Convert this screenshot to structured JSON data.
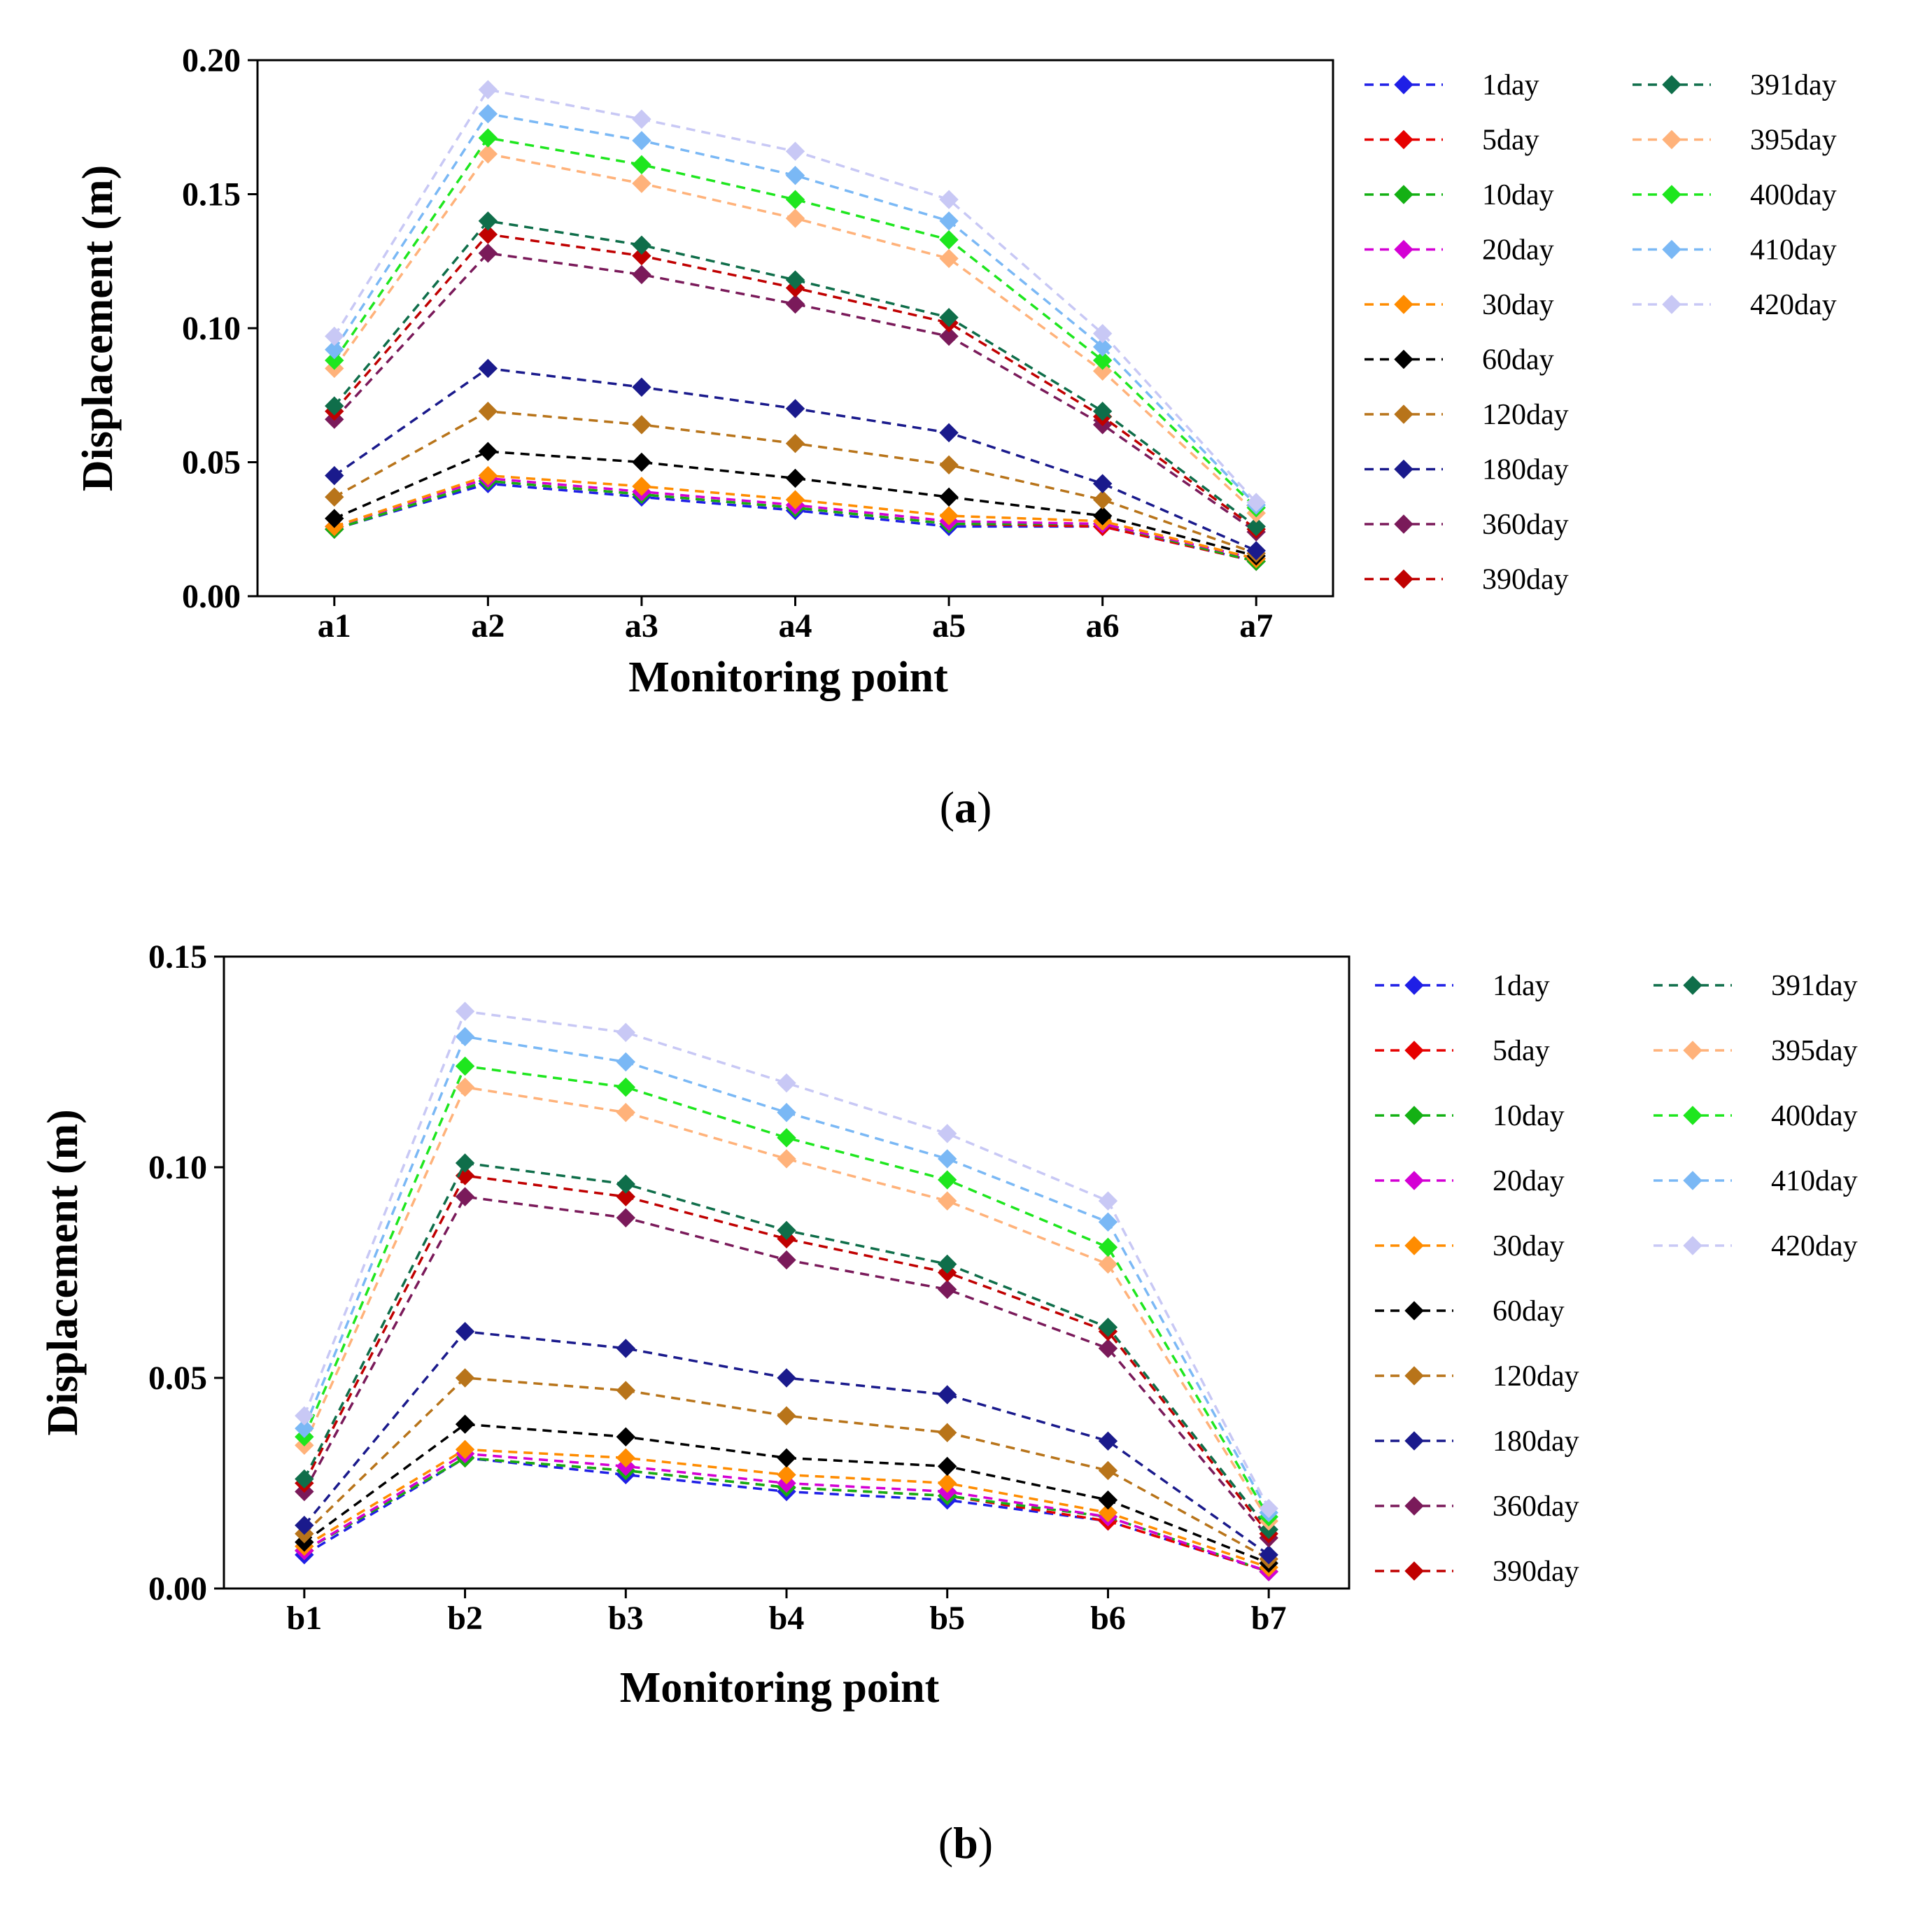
{
  "chart_data": [
    {
      "type": "line",
      "caption_letter": "a",
      "xlabel": "Monitoring point",
      "ylabel": "Displacement (m)",
      "categories": [
        "a1",
        "a2",
        "a3",
        "a4",
        "a5",
        "a6",
        "a7"
      ],
      "ylim": [
        0,
        0.2
      ],
      "yticks": [
        0.0,
        0.05,
        0.1,
        0.15,
        0.2
      ],
      "ytick_labels": [
        "0.00",
        "0.05",
        "0.10",
        "0.15",
        "0.20"
      ],
      "series": [
        {
          "name": "1day",
          "color": "#1f1fe6",
          "values": [
            0.025,
            0.042,
            0.037,
            0.032,
            0.026,
            0.026,
            0.013
          ]
        },
        {
          "name": "5day",
          "color": "#e60000",
          "values": [
            0.025,
            0.043,
            0.038,
            0.033,
            0.027,
            0.026,
            0.013
          ]
        },
        {
          "name": "10day",
          "color": "#14b014",
          "values": [
            0.025,
            0.043,
            0.038,
            0.033,
            0.027,
            0.027,
            0.013
          ]
        },
        {
          "name": "20day",
          "color": "#d400d4",
          "values": [
            0.026,
            0.044,
            0.039,
            0.034,
            0.028,
            0.027,
            0.014
          ]
        },
        {
          "name": "30day",
          "color": "#ff8c00",
          "values": [
            0.026,
            0.045,
            0.041,
            0.036,
            0.03,
            0.028,
            0.014
          ]
        },
        {
          "name": "60day",
          "color": "#000000",
          "values": [
            0.029,
            0.054,
            0.05,
            0.044,
            0.037,
            0.03,
            0.015
          ]
        },
        {
          "name": "120day",
          "color": "#b8741a",
          "values": [
            0.037,
            0.069,
            0.064,
            0.057,
            0.049,
            0.036,
            0.016
          ]
        },
        {
          "name": "180day",
          "color": "#1a1a8c",
          "values": [
            0.045,
            0.085,
            0.078,
            0.07,
            0.061,
            0.042,
            0.017
          ]
        },
        {
          "name": "360day",
          "color": "#7a1a5a",
          "values": [
            0.066,
            0.128,
            0.12,
            0.109,
            0.097,
            0.064,
            0.024
          ]
        },
        {
          "name": "390day",
          "color": "#c00000",
          "values": [
            0.069,
            0.135,
            0.127,
            0.115,
            0.102,
            0.067,
            0.025
          ]
        },
        {
          "name": "391day",
          "color": "#0f6e4a",
          "values": [
            0.071,
            0.14,
            0.131,
            0.118,
            0.104,
            0.069,
            0.026
          ]
        },
        {
          "name": "395day",
          "color": "#ffb27a",
          "values": [
            0.085,
            0.165,
            0.154,
            0.141,
            0.126,
            0.084,
            0.031
          ]
        },
        {
          "name": "400day",
          "color": "#1ee61e",
          "values": [
            0.088,
            0.171,
            0.161,
            0.148,
            0.133,
            0.088,
            0.033
          ]
        },
        {
          "name": "410day",
          "color": "#7ab8f5",
          "values": [
            0.092,
            0.18,
            0.17,
            0.157,
            0.14,
            0.093,
            0.034
          ]
        },
        {
          "name": "420day",
          "color": "#c8c8f5",
          "values": [
            0.097,
            0.189,
            0.178,
            0.166,
            0.148,
            0.098,
            0.035
          ]
        }
      ]
    },
    {
      "type": "line",
      "caption_letter": "b",
      "xlabel": "Monitoring point",
      "ylabel": "Displacement (m)",
      "categories": [
        "b1",
        "b2",
        "b3",
        "b4",
        "b5",
        "b6",
        "b7"
      ],
      "ylim": [
        0,
        0.15
      ],
      "yticks": [
        0.0,
        0.05,
        0.1,
        0.15
      ],
      "ytick_labels": [
        "0.00",
        "0.05",
        "0.10",
        "0.15"
      ],
      "series": [
        {
          "name": "1day",
          "color": "#1f1fe6",
          "values": [
            0.008,
            0.031,
            0.027,
            0.023,
            0.021,
            0.016,
            0.004
          ]
        },
        {
          "name": "5day",
          "color": "#e60000",
          "values": [
            0.009,
            0.031,
            0.028,
            0.024,
            0.022,
            0.016,
            0.004
          ]
        },
        {
          "name": "10day",
          "color": "#14b014",
          "values": [
            0.009,
            0.031,
            0.028,
            0.024,
            0.022,
            0.017,
            0.004
          ]
        },
        {
          "name": "20day",
          "color": "#d400d4",
          "values": [
            0.009,
            0.032,
            0.029,
            0.025,
            0.023,
            0.017,
            0.004
          ]
        },
        {
          "name": "30day",
          "color": "#ff8c00",
          "values": [
            0.01,
            0.033,
            0.031,
            0.027,
            0.025,
            0.018,
            0.005
          ]
        },
        {
          "name": "60day",
          "color": "#000000",
          "values": [
            0.011,
            0.039,
            0.036,
            0.031,
            0.029,
            0.021,
            0.006
          ]
        },
        {
          "name": "120day",
          "color": "#b8741a",
          "values": [
            0.013,
            0.05,
            0.047,
            0.041,
            0.037,
            0.028,
            0.007
          ]
        },
        {
          "name": "180day",
          "color": "#1a1a8c",
          "values": [
            0.015,
            0.061,
            0.057,
            0.05,
            0.046,
            0.035,
            0.008
          ]
        },
        {
          "name": "360day",
          "color": "#7a1a5a",
          "values": [
            0.023,
            0.093,
            0.088,
            0.078,
            0.071,
            0.057,
            0.012
          ]
        },
        {
          "name": "390day",
          "color": "#c00000",
          "values": [
            0.025,
            0.098,
            0.093,
            0.083,
            0.075,
            0.061,
            0.013
          ]
        },
        {
          "name": "391day",
          "color": "#0f6e4a",
          "values": [
            0.026,
            0.101,
            0.096,
            0.085,
            0.077,
            0.062,
            0.014
          ]
        },
        {
          "name": "395day",
          "color": "#ffb27a",
          "values": [
            0.034,
            0.119,
            0.113,
            0.102,
            0.092,
            0.077,
            0.016
          ]
        },
        {
          "name": "400day",
          "color": "#1ee61e",
          "values": [
            0.036,
            0.124,
            0.119,
            0.107,
            0.097,
            0.081,
            0.017
          ]
        },
        {
          "name": "410day",
          "color": "#7ab8f5",
          "values": [
            0.038,
            0.131,
            0.125,
            0.113,
            0.102,
            0.087,
            0.018
          ]
        },
        {
          "name": "420day",
          "color": "#c8c8f5",
          "values": [
            0.041,
            0.137,
            0.132,
            0.12,
            0.108,
            0.092,
            0.019
          ]
        }
      ]
    }
  ]
}
